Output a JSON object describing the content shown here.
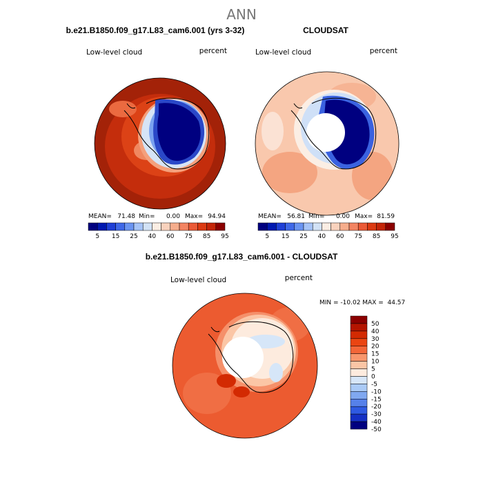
{
  "title": "ANN",
  "chart_data": [
    {
      "type": "heatmap",
      "title": "b.e21.B1850.f09_g17.L83_cam6.001 (yrs 3-32)",
      "left_label": "Low-level cloud",
      "right_label": "percent",
      "stats": {
        "mean_label": "MEAN=",
        "mean": "71.48",
        "min_label": "Min=",
        "min": "0.00",
        "max_label": "Max=",
        "max": "94.94"
      },
      "colorbar_ticks": [
        "5",
        "15",
        "25",
        "40",
        "60",
        "75",
        "85",
        "95"
      ]
    },
    {
      "type": "heatmap",
      "title": "CLOUDSAT",
      "left_label": "Low-level cloud",
      "right_label": "percent",
      "stats": {
        "mean_label": "MEAN=",
        "mean": "56.81",
        "min_label": "Min=",
        "min": "0.00",
        "max_label": "Max=",
        "max": "81.59"
      },
      "colorbar_ticks": [
        "5",
        "15",
        "25",
        "40",
        "60",
        "75",
        "85",
        "95"
      ]
    },
    {
      "type": "heatmap",
      "title": "b.e21.B1850.f09_g17.L83_cam6.001 - CLOUDSAT",
      "left_label": "Low-level cloud",
      "right_label": "percent",
      "minmax": "MIN = -10.02 MAX =  44.57",
      "colorbar_ticks": [
        "50",
        "40",
        "30",
        "20",
        "15",
        "10",
        "5",
        "0",
        "-5",
        "-10",
        "-15",
        "-20",
        "-30",
        "-40",
        "-50"
      ]
    }
  ],
  "colors": {
    "abs": [
      "#000080",
      "#0018b0",
      "#1f3fd6",
      "#3f68e8",
      "#6a94f2",
      "#a6c4f8",
      "#d2e2f6",
      "#fbeee4",
      "#f9d2bd",
      "#f6ad8c",
      "#f38462",
      "#eb5a36",
      "#dc3a12",
      "#c42508",
      "#8b0000"
    ],
    "diff": [
      "#8b0000",
      "#b41400",
      "#d32a02",
      "#ea4512",
      "#f36638",
      "#f8966c",
      "#fbc6a6",
      "#fdebde",
      "#d6e6f8",
      "#aacaf6",
      "#80a8f0",
      "#5681ea",
      "#2f5ae2",
      "#1530c4",
      "#000080"
    ]
  }
}
